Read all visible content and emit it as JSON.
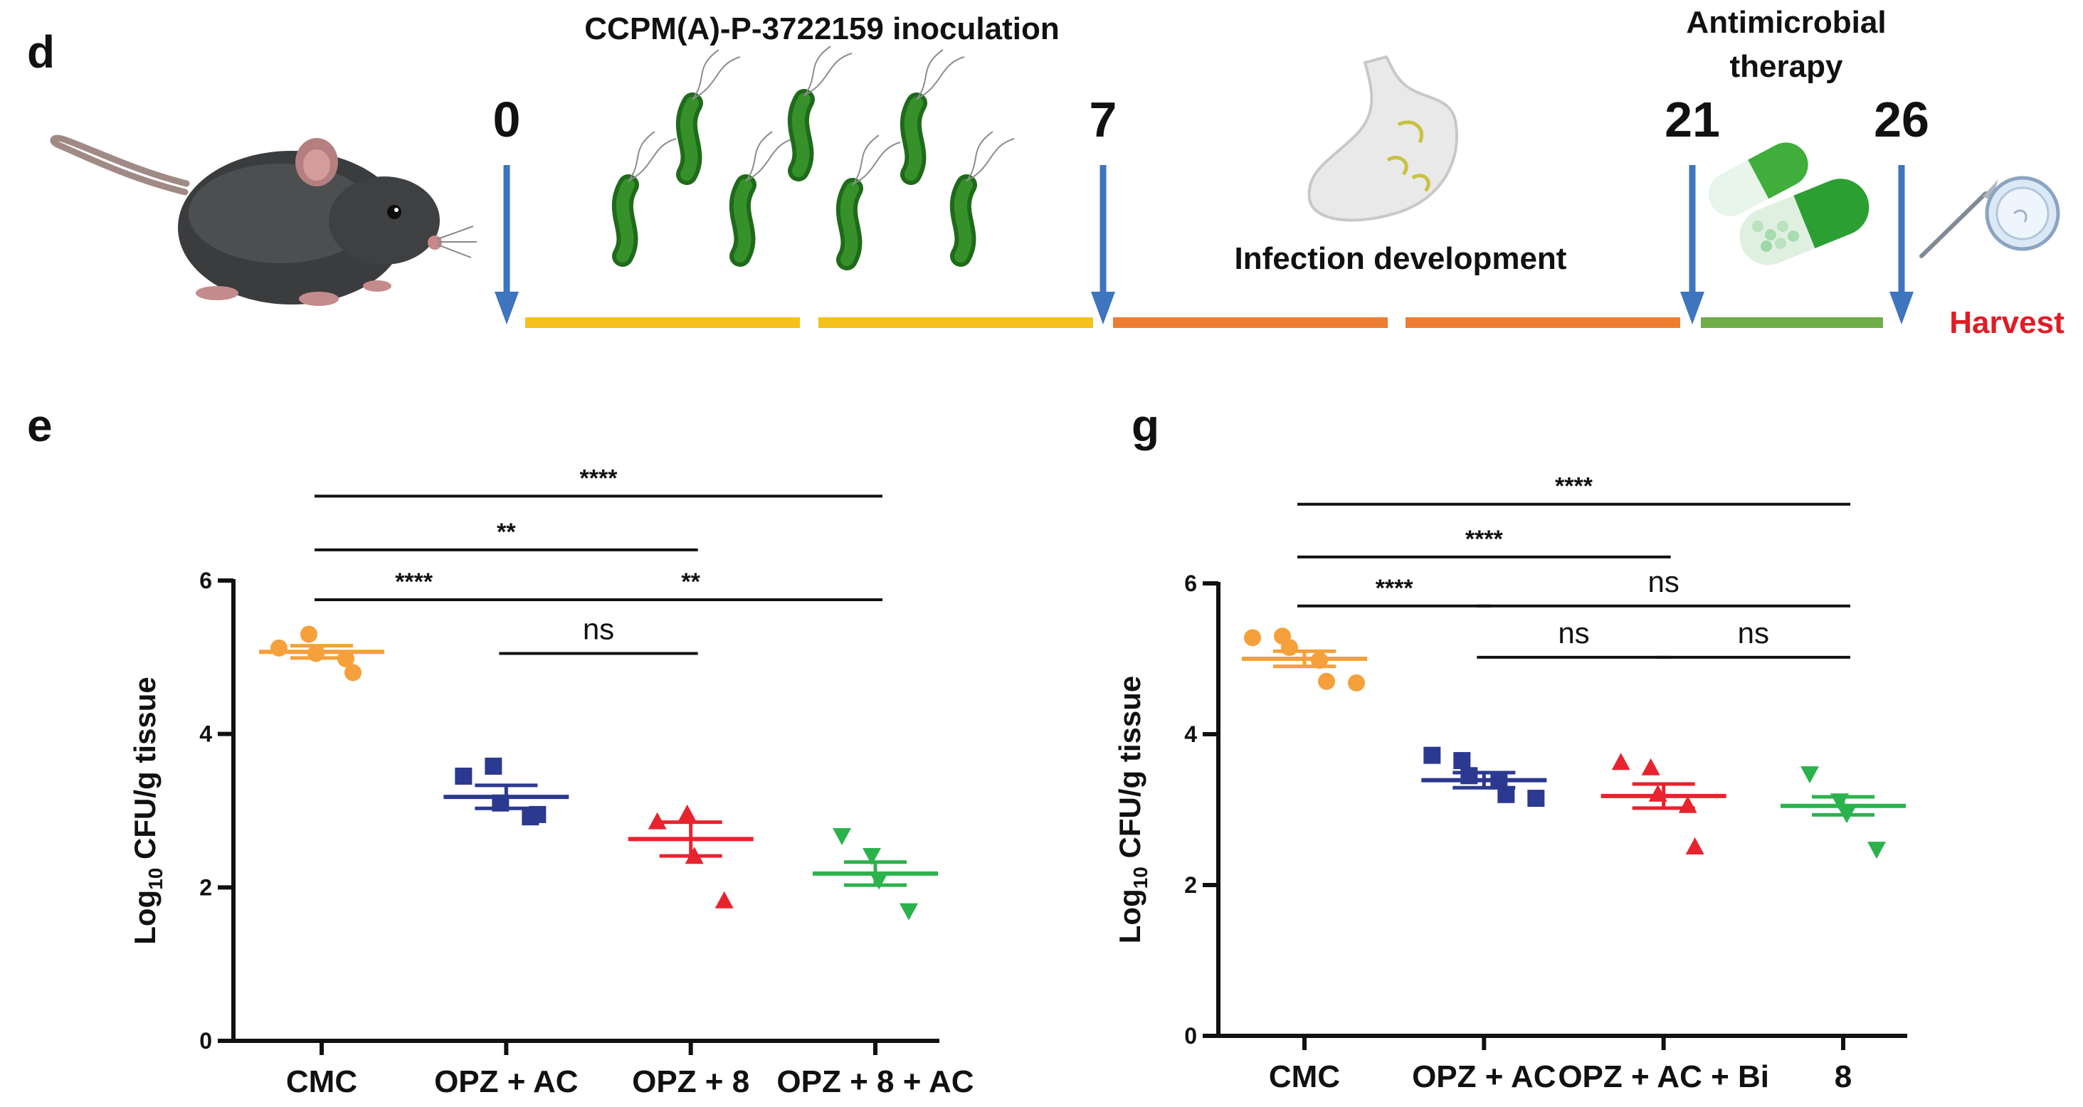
{
  "panel_d": {
    "letter": "d",
    "inoculation_title": "CCPM(A)-P-3722159 inoculation",
    "therapy_title_line1": "Antimicrobial",
    "therapy_title_line2": "therapy",
    "infection_label": "Infection development",
    "harvest_label": "Harvest",
    "days": [
      "0",
      "7",
      "21",
      "26"
    ],
    "colors": {
      "inoculation": "#f6c11b",
      "infection": "#ee7d31",
      "therapy": "#6fad46",
      "arrow": "#3f74bf"
    }
  },
  "chart_data": [
    {
      "panel": "e",
      "type": "scatter",
      "title": "",
      "xlabel": "",
      "ylabel_main": "Log",
      "ylabel_sub": "10",
      "ylabel_rest": " CFU/g tissue",
      "ylim": [
        0,
        6
      ],
      "yticks": [
        0,
        2,
        4,
        6
      ],
      "grid": false,
      "categories": [
        "CMC",
        "OPZ + AC",
        "OPZ + 8",
        "OPZ + 8 + AC"
      ],
      "series": [
        {
          "category": "CMC",
          "marker": "circle",
          "color": "#f5a03a",
          "mean": 5.07,
          "sem": 0.08,
          "points": [
            5.12,
            5.3,
            5.05,
            4.98,
            4.8
          ]
        },
        {
          "category": "OPZ + AC",
          "marker": "square",
          "color": "#2b3990",
          "mean": 3.18,
          "sem": 0.15,
          "points": [
            3.45,
            3.58,
            3.1,
            2.92,
            2.95
          ]
        },
        {
          "category": "OPZ + 8",
          "marker": "triangle-up",
          "color": "#e8232e",
          "mean": 2.63,
          "sem": 0.22,
          "points": [
            2.85,
            2.95,
            2.4,
            1.82
          ]
        },
        {
          "category": "OPZ + 8 + AC",
          "marker": "triangle-down",
          "color": "#2bb24c",
          "mean": 2.18,
          "sem": 0.15,
          "points": [
            2.68,
            2.42,
            2.1,
            1.7
          ]
        }
      ],
      "comparisons": [
        {
          "from": 0,
          "to": 3,
          "label": "****",
          "y": 7.1
        },
        {
          "from": 0,
          "to": 2,
          "label": "**",
          "y": 6.4
        },
        {
          "from": 0,
          "to": 1,
          "label": "****",
          "y": 5.75
        },
        {
          "from": 1,
          "to": 3,
          "label": "**",
          "y": 5.75
        },
        {
          "from": 1,
          "to": 2,
          "label": "ns",
          "y": 5.05
        }
      ]
    },
    {
      "panel": "g",
      "type": "scatter",
      "title": "",
      "xlabel": "",
      "ylabel_main": "Log",
      "ylabel_sub": "10",
      "ylabel_rest": " CFU/g tissue",
      "ylim": [
        0,
        6
      ],
      "yticks": [
        0,
        2,
        4,
        6
      ],
      "grid": false,
      "categories": [
        "CMC",
        "OPZ + AC",
        "OPZ + AC + Bi",
        "8"
      ],
      "series": [
        {
          "category": "CMC",
          "marker": "circle",
          "color": "#f5a03a",
          "mean": 5.0,
          "sem": 0.1,
          "points": [
            5.28,
            5.3,
            5.15,
            4.98,
            4.7,
            4.68
          ]
        },
        {
          "category": "OPZ + AC",
          "marker": "square",
          "color": "#2b3990",
          "mean": 3.39,
          "sem": 0.1,
          "points": [
            3.72,
            3.65,
            3.45,
            3.38,
            3.2,
            3.15
          ]
        },
        {
          "category": "OPZ + AC + Bi",
          "marker": "triangle-up",
          "color": "#e8232e",
          "mean": 3.18,
          "sem": 0.16,
          "points": [
            3.62,
            3.55,
            3.2,
            3.05,
            2.5
          ]
        },
        {
          "category": "8",
          "marker": "triangle-down",
          "color": "#2bb24c",
          "mean": 3.05,
          "sem": 0.12,
          "points": [
            3.48,
            3.12,
            2.95,
            2.48
          ]
        }
      ],
      "comparisons": [
        {
          "from": 0,
          "to": 3,
          "label": "****",
          "y": 7.05
        },
        {
          "from": 0,
          "to": 2,
          "label": "****",
          "y": 6.35
        },
        {
          "from": 0,
          "to": 1,
          "label": "****",
          "y": 5.7
        },
        {
          "from": 1,
          "to": 3,
          "label": "ns",
          "y": 5.7
        },
        {
          "from": 1,
          "to": 2,
          "label": "ns",
          "y": 5.02
        },
        {
          "from": 2,
          "to": 3,
          "label": "ns",
          "y": 5.02
        }
      ]
    }
  ]
}
